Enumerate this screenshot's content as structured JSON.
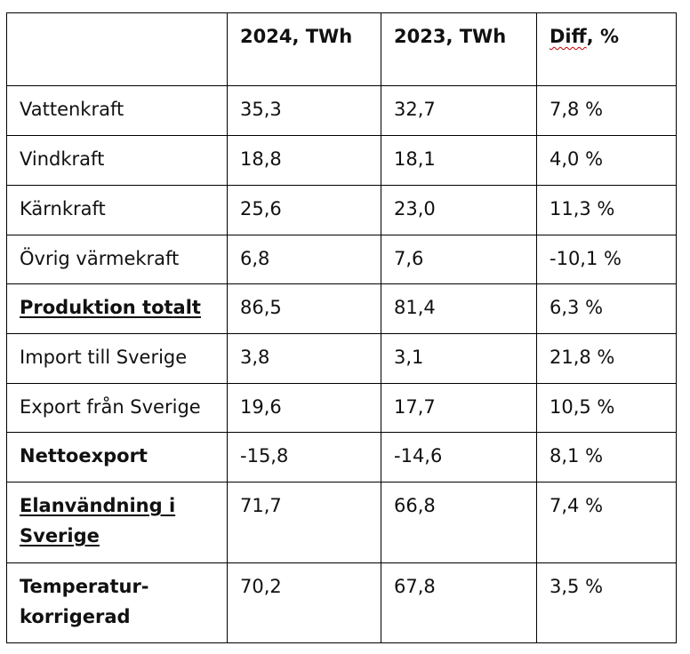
{
  "header": {
    "col0": "",
    "col1": "2024, TWh",
    "col2": "2023, TWh",
    "col3_word": "Diff",
    "col3_rest": ", %"
  },
  "rows": [
    {
      "label": "Vattenkraft",
      "v2024": "35,3",
      "v2023": "32,7",
      "diff": "7,8 %"
    },
    {
      "label": "Vindkraft",
      "v2024": "18,8",
      "v2023": "18,1",
      "diff": "4,0 %"
    },
    {
      "label": "Kärnkraft",
      "v2024": "25,6",
      "v2023": "23,0",
      "diff": "11,3 %"
    },
    {
      "label": "Övrig värmekraft",
      "v2024": "6,8",
      "v2023": "7,6",
      "diff": "-10,1 %"
    },
    {
      "label": "Produktion totalt",
      "v2024": "86,5",
      "v2023": "81,4",
      "diff": "6,3 %"
    },
    {
      "label": "Import till Sverige",
      "v2024": "3,8",
      "v2023": "3,1",
      "diff": "21,8 %"
    },
    {
      "label": "Export från Sverige",
      "v2024": "19,6",
      "v2023": "17,7",
      "diff": "10,5 %"
    },
    {
      "label": "Nettoexport",
      "v2024": "-15,8",
      "v2023": "-14,6",
      "diff": "8,1 %"
    },
    {
      "label_line1": "Elanvändning i",
      "label_line2": "Sverige",
      "v2024": "71,7",
      "v2023": "66,8",
      "diff": "7,4 %"
    },
    {
      "label_line1": "Temperatur-",
      "label_line2": "korrigerad",
      "v2024": "70,2",
      "v2023": "67,8",
      "diff": "3,5 %"
    }
  ]
}
